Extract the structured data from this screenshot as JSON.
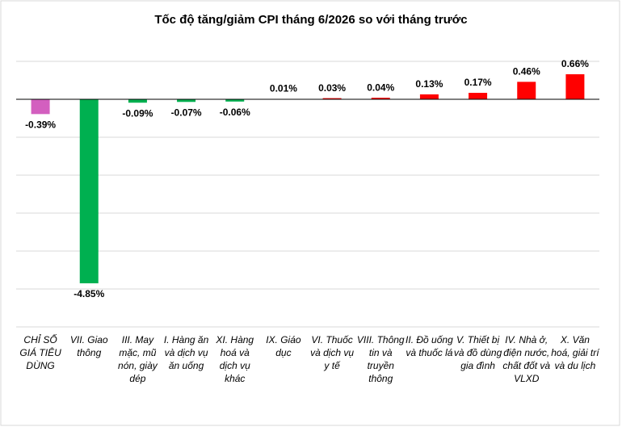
{
  "chart_data": {
    "type": "bar",
    "title": "Tốc độ tăng/giảm CPI tháng 6/2026 so với tháng trước",
    "categories": [
      "CHỈ SỐ GIÁ TIÊU DÙNG",
      "VII. Giao thông",
      "III. May mặc, mũ nón, giày dép",
      "I. Hàng ăn và dịch vụ ăn uống",
      "XI. Hàng hoá và dịch vụ khác",
      "IX. Giáo dục",
      "VI. Thuốc và dịch vụ y tế",
      "VIII. Thông tin và truyền thông",
      "II. Đồ uống và thuốc lá",
      "V. Thiết bị và đồ dùng gia đình",
      "IV. Nhà ở, điện nước, chất đốt và VLXD",
      "X. Văn hoá, giải trí và du lịch"
    ],
    "values": [
      -0.39,
      -4.85,
      -0.09,
      -0.07,
      -0.06,
      0.01,
      0.03,
      0.04,
      0.13,
      0.17,
      0.46,
      0.66
    ],
    "value_labels": [
      "-0.39%",
      "-4.85%",
      "-0.09%",
      "-0.07%",
      "-0.06%",
      "0.01%",
      "0.03%",
      "0.04%",
      "0.13%",
      "0.17%",
      "0.46%",
      "0.66%"
    ],
    "colors": [
      "#d35fbf",
      "#00b050",
      "#00b050",
      "#00b050",
      "#00b050",
      "#ff0000",
      "#ff0000",
      "#ff0000",
      "#ff0000",
      "#ff0000",
      "#ff0000",
      "#ff0000"
    ],
    "ylim": [
      -6,
      1
    ],
    "yticks": [
      -6,
      -5,
      -4,
      -3,
      -2,
      -1,
      0,
      1
    ],
    "grid": true
  }
}
